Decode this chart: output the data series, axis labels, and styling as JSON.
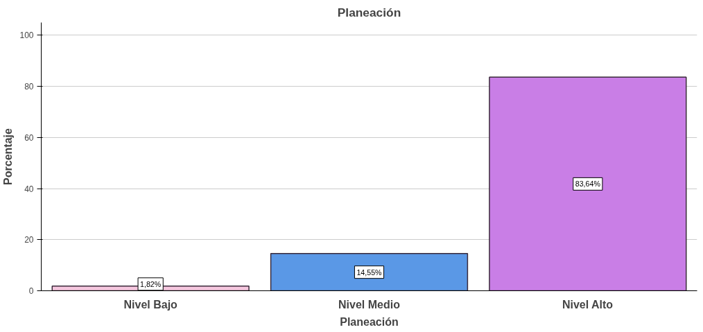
{
  "chart_data": {
    "type": "bar",
    "title": "Planeación",
    "xlabel": "Planeación",
    "ylabel": "Porcentaje",
    "categories": [
      "Nivel Bajo",
      "Nivel Medio",
      "Nivel Alto"
    ],
    "values": [
      1.82,
      14.55,
      83.64
    ],
    "colors": [
      "#f5c6de",
      "#5a98e6",
      "#c97ee6"
    ],
    "value_labels": [
      "1,82%",
      "14,55%",
      "83,64%"
    ],
    "ylim": [
      0,
      105
    ],
    "yticks": [
      0,
      20,
      40,
      60,
      80,
      100
    ],
    "grid": "y"
  }
}
